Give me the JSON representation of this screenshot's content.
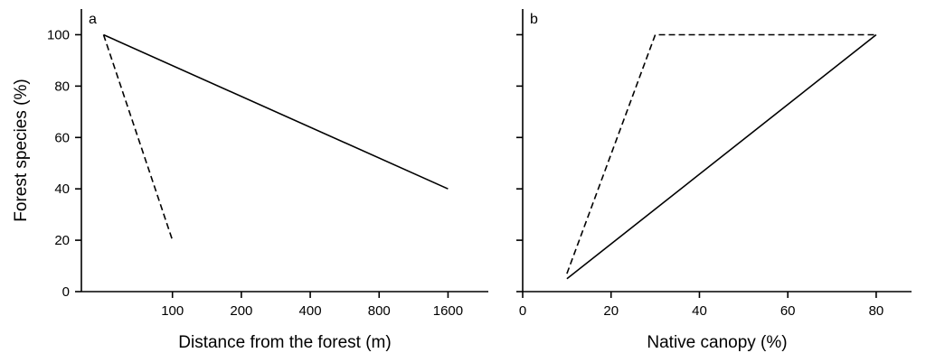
{
  "chart_data": [
    {
      "type": "line",
      "panel_label": "a",
      "xlabel": "Distance from the forest (m)",
      "ylabel": "Forest species (%)",
      "x_scale": "log",
      "x_ticks": [
        100,
        200,
        400,
        800,
        1600
      ],
      "y_ticks": [
        0,
        20,
        40,
        60,
        80,
        100
      ],
      "xlim": [
        40,
        2400
      ],
      "ylim": [
        0,
        110
      ],
      "series": [
        {
          "style": "solid",
          "x": [
            50,
            1600
          ],
          "y": [
            100,
            40
          ]
        },
        {
          "style": "dashed",
          "x": [
            50,
            100
          ],
          "y": [
            100,
            20
          ]
        }
      ]
    },
    {
      "type": "line",
      "panel_label": "b",
      "xlabel": "Native canopy (%)",
      "ylabel": "",
      "x_scale": "linear",
      "x_ticks": [
        0,
        20,
        40,
        60,
        80
      ],
      "y_ticks": [
        0,
        20,
        40,
        60,
        80,
        100
      ],
      "xlim": [
        0,
        88
      ],
      "ylim": [
        0,
        110
      ],
      "series": [
        {
          "style": "solid",
          "x": [
            10,
            80
          ],
          "y": [
            5,
            100
          ]
        },
        {
          "style": "dashed",
          "x": [
            10,
            30,
            80
          ],
          "y": [
            7,
            100,
            100
          ]
        }
      ]
    }
  ]
}
